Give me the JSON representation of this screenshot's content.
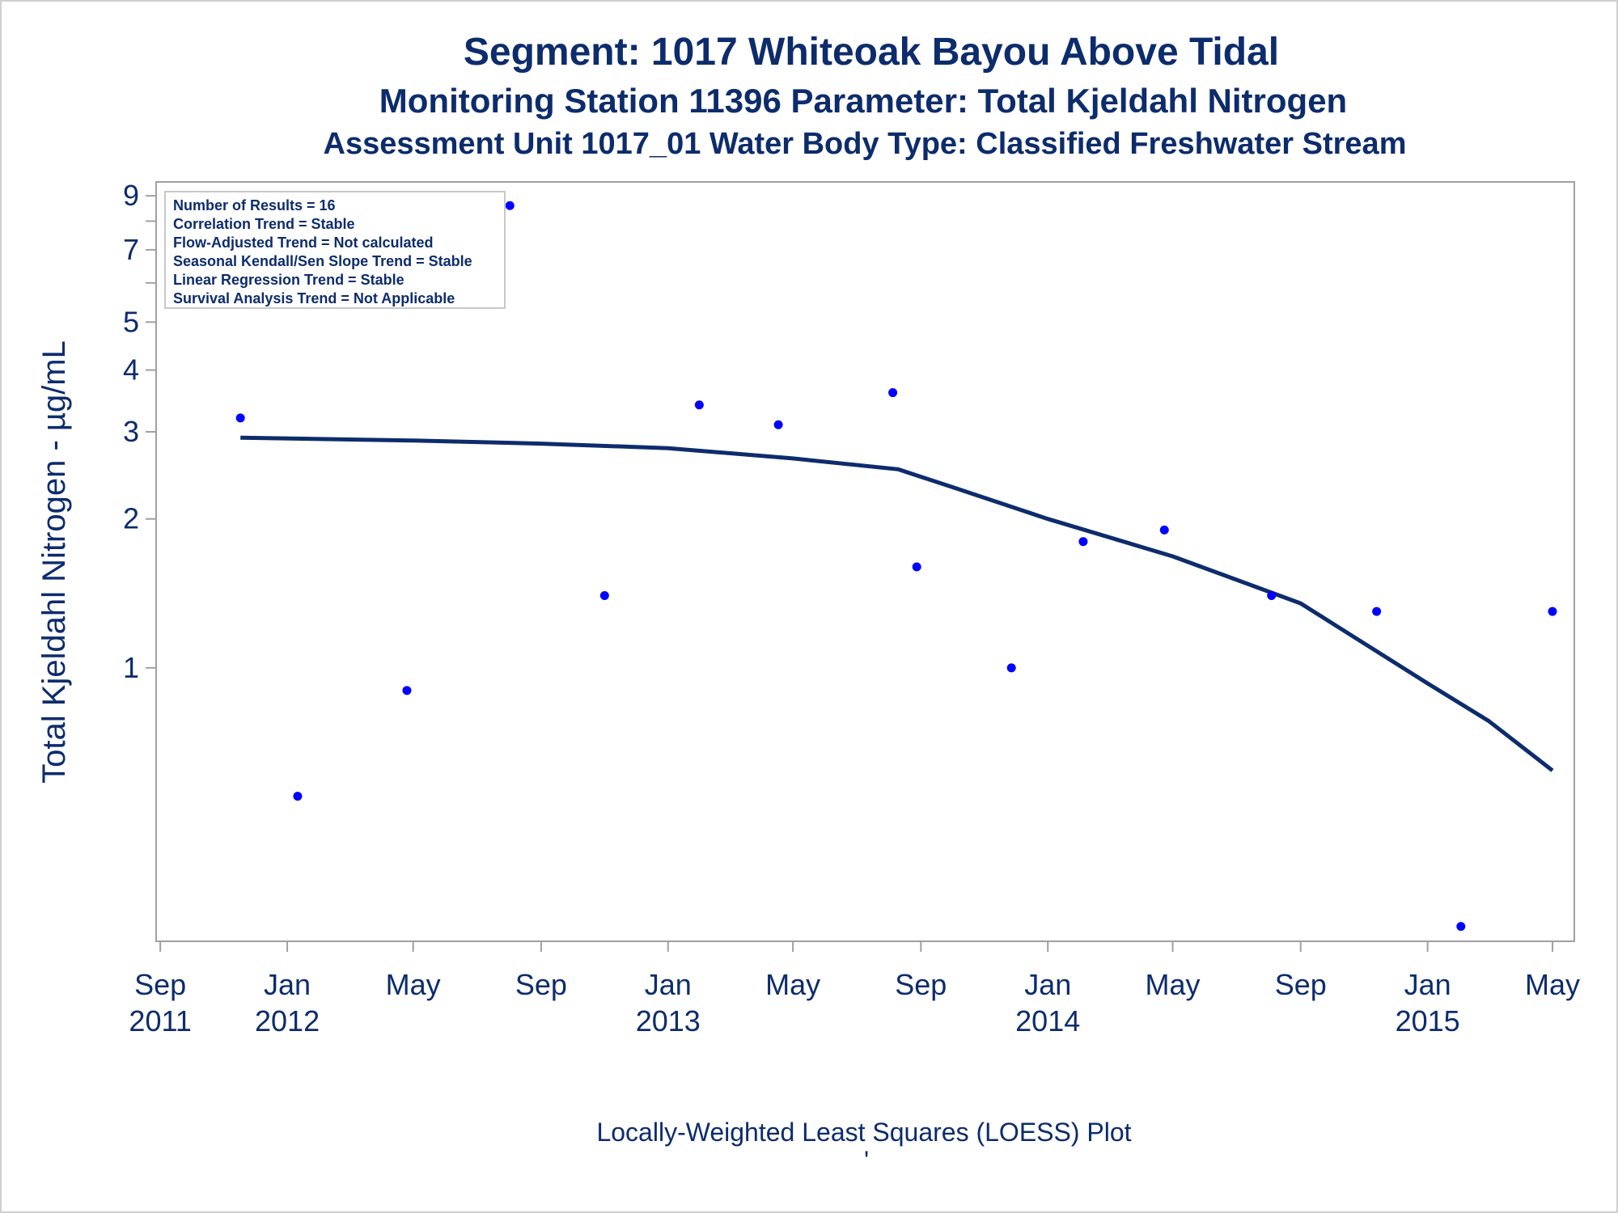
{
  "titles": {
    "line1": "Segment: 1017  Whiteoak Bayou Above Tidal",
    "line2": "Monitoring Station 11396 Parameter: Total Kjeldahl Nitrogen",
    "line3": "Assessment Unit 1017_01   Water Body Type: Classified Freshwater Stream"
  },
  "footnote": "Locally-Weighted Least Squares (LOESS) Plot",
  "footnote_mark": "'",
  "stats_box": [
    "Number of Results = 16",
    "Correlation Trend = Stable",
    "Flow-Adjusted Trend = Not calculated",
    "Seasonal Kendall/Sen Slope Trend = Stable",
    "Linear Regression Trend = Stable",
    "Survival Analysis Trend = Not Applicable"
  ],
  "colors": {
    "text": "#0d2c6c",
    "points": "#0000ff",
    "loess_line": "#0d2c6c",
    "axis": "#a0a0a0"
  },
  "chart_data": {
    "type": "scatter",
    "ylabel": "Total Kjeldahl Nitrogen -  µg/mL",
    "xlabel": "",
    "y_scale": "log",
    "ylim": [
      0.28,
      9.6
    ],
    "xlim": [
      "2011-08-28",
      "2015-05-22"
    ],
    "y_ticks": [
      1,
      2,
      3,
      4,
      5,
      7,
      9
    ],
    "y_minor_ticks": [
      6,
      8
    ],
    "x_ticks": [
      {
        "date": "2011-09-01",
        "label": [
          "Sep",
          "2011"
        ]
      },
      {
        "date": "2012-01-01",
        "label": [
          "Jan",
          "2012"
        ]
      },
      {
        "date": "2012-05-01",
        "label": [
          "May",
          ""
        ]
      },
      {
        "date": "2012-09-01",
        "label": [
          "Sep",
          ""
        ]
      },
      {
        "date": "2013-01-01",
        "label": [
          "Jan",
          "2013"
        ]
      },
      {
        "date": "2013-05-01",
        "label": [
          "May",
          ""
        ]
      },
      {
        "date": "2013-09-01",
        "label": [
          "Sep",
          ""
        ]
      },
      {
        "date": "2014-01-01",
        "label": [
          "Jan",
          "2014"
        ]
      },
      {
        "date": "2014-05-01",
        "label": [
          "May",
          ""
        ]
      },
      {
        "date": "2014-09-01",
        "label": [
          "Sep",
          ""
        ]
      },
      {
        "date": "2015-01-01",
        "label": [
          "Jan",
          "2015"
        ]
      },
      {
        "date": "2015-05-01",
        "label": [
          "May",
          ""
        ]
      }
    ],
    "series": [
      {
        "type": "scatter",
        "points": [
          {
            "x": "2011-11-17",
            "y": 3.2
          },
          {
            "x": "2012-01-11",
            "y": 0.55
          },
          {
            "x": "2012-04-25",
            "y": 0.9
          },
          {
            "x": "2012-08-02",
            "y": 8.6
          },
          {
            "x": "2012-11-01",
            "y": 1.4
          },
          {
            "x": "2013-01-31",
            "y": 3.4
          },
          {
            "x": "2013-04-17",
            "y": 3.1
          },
          {
            "x": "2013-08-05",
            "y": 3.6
          },
          {
            "x": "2013-08-28",
            "y": 1.6
          },
          {
            "x": "2013-11-27",
            "y": 1.0
          },
          {
            "x": "2014-02-04",
            "y": 1.8
          },
          {
            "x": "2014-04-23",
            "y": 1.9
          },
          {
            "x": "2014-08-04",
            "y": 1.4
          },
          {
            "x": "2014-11-13",
            "y": 1.3
          },
          {
            "x": "2015-02-02",
            "y": 0.3
          },
          {
            "x": "2015-05-01",
            "y": 1.3
          }
        ]
      },
      {
        "type": "line",
        "points": [
          {
            "x": "2011-11-17",
            "y": 2.92
          },
          {
            "x": "2012-05-01",
            "y": 2.88
          },
          {
            "x": "2012-09-01",
            "y": 2.84
          },
          {
            "x": "2013-01-01",
            "y": 2.78
          },
          {
            "x": "2013-05-01",
            "y": 2.65
          },
          {
            "x": "2013-08-10",
            "y": 2.52
          },
          {
            "x": "2013-10-01",
            "y": 2.32
          },
          {
            "x": "2014-01-01",
            "y": 2.0
          },
          {
            "x": "2014-05-01",
            "y": 1.68
          },
          {
            "x": "2014-09-01",
            "y": 1.35
          },
          {
            "x": "2015-01-01",
            "y": 0.93
          },
          {
            "x": "2015-03-01",
            "y": 0.78
          },
          {
            "x": "2015-05-01",
            "y": 0.62
          }
        ]
      }
    ]
  }
}
